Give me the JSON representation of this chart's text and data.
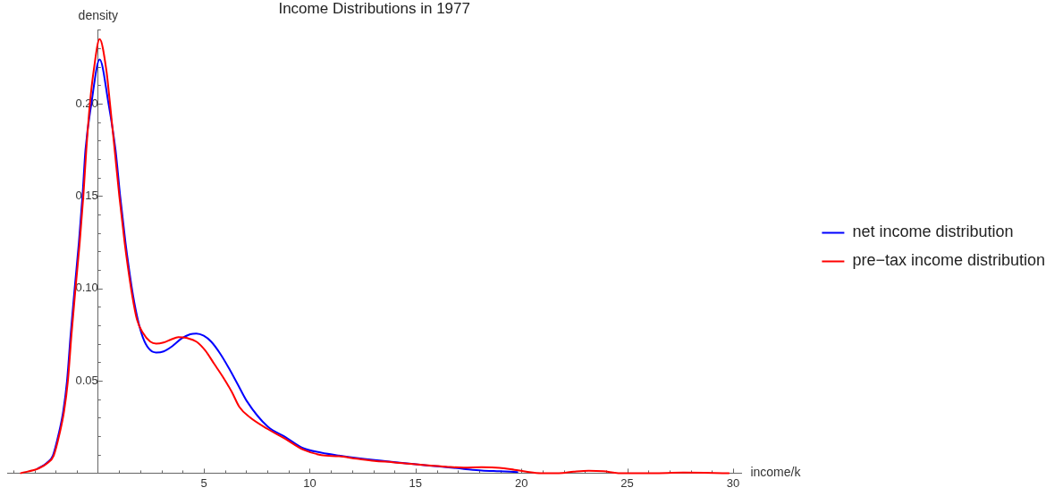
{
  "chart_data": {
    "type": "line",
    "title": "Income Distributions in 1977",
    "xlabel": "income/k",
    "ylabel": "density",
    "series": [
      {
        "name": "net income distribution",
        "color": "#0000ff",
        "x": [
          -2.84,
          -2.44,
          -2.14,
          -1.87,
          -1.65,
          -1.47,
          -1.3,
          -1.11,
          -0.91,
          -0.74,
          -0.6,
          -0.32,
          0.07,
          0.49,
          0.82,
          1.04,
          1.29,
          1.44,
          1.65,
          1.87,
          2.11,
          2.39,
          2.74,
          3.09,
          3.51,
          3.93,
          4.35,
          4.64,
          4.99,
          5.34,
          5.76,
          6.18,
          6.6,
          7.02,
          8.01,
          8.85,
          9.69,
          10.54,
          11.38,
          12.22,
          17.28,
          18.12,
          18.96,
          19.81
        ],
        "values": [
          0.0026,
          0.0054,
          0.0095,
          0.021,
          0.0335,
          0.05,
          0.075,
          0.1,
          0.125,
          0.15,
          0.175,
          0.2,
          0.224,
          0.2,
          0.175,
          0.15,
          0.125,
          0.112,
          0.0961,
          0.0833,
          0.0736,
          0.0675,
          0.0653,
          0.0659,
          0.0688,
          0.0728,
          0.0752,
          0.0756,
          0.0744,
          0.0712,
          0.0648,
          0.0568,
          0.048,
          0.0391,
          0.0252,
          0.0195,
          0.0135,
          0.0111,
          0.0095,
          0.0082,
          0.0023,
          0.0014,
          0.001,
          0.0006
        ]
      },
      {
        "name": "pre−tax income distribution",
        "color": "#ff0000",
        "x": [
          -3.65,
          -2.8,
          -2.4,
          -2.1,
          -1.83,
          -1.61,
          -1.43,
          -1.26,
          -1.07,
          -0.87,
          -0.7,
          -0.56,
          -0.39,
          -0.21,
          0.07,
          0.39,
          0.56,
          0.78,
          1.0,
          1.25,
          1.4,
          1.61,
          1.83,
          2.11,
          2.46,
          2.74,
          3.09,
          3.44,
          3.79,
          4.21,
          4.64,
          5.06,
          5.48,
          5.9,
          6.32,
          6.67,
          7.16,
          8.01,
          8.85,
          9.69,
          10.54,
          11.38,
          12.22,
          13.06,
          13.91,
          14.75,
          15.59,
          16.43,
          17.28,
          18.12,
          18.96,
          19.67,
          20.23,
          20.93,
          21.77,
          22.47,
          23.18,
          23.88,
          24.58,
          25.42,
          26.5,
          27.7,
          29.8
        ],
        "values": [
          0,
          0.0026,
          0.0054,
          0.0095,
          0.021,
          0.0335,
          0.05,
          0.075,
          0.1,
          0.125,
          0.15,
          0.175,
          0.2,
          0.218,
          0.235,
          0.218,
          0.2,
          0.175,
          0.15,
          0.125,
          0.112,
          0.0961,
          0.0833,
          0.076,
          0.0712,
          0.0701,
          0.0707,
          0.0723,
          0.0736,
          0.0731,
          0.0712,
          0.0664,
          0.0592,
          0.052,
          0.0439,
          0.0359,
          0.0303,
          0.0239,
          0.0185,
          0.0127,
          0.0098,
          0.0091,
          0.0078,
          0.0066,
          0.0059,
          0.005,
          0.0042,
          0.0035,
          0.003,
          0.0032,
          0.0029,
          0.0018,
          0.0008,
          0,
          0,
          0.0008,
          0.0013,
          0.001,
          0,
          0,
          0,
          0.0003,
          0
        ]
      }
    ],
    "xlim": [
      -4.3,
      30.4
    ],
    "ylim": [
      0,
      0.24
    ],
    "xticks": [
      {
        "value": -4,
        "label": null
      },
      {
        "value": -3,
        "label": null
      },
      {
        "value": -2,
        "label": null
      },
      {
        "value": -1,
        "label": null
      },
      {
        "value": 1,
        "label": null
      },
      {
        "value": 2,
        "label": null
      },
      {
        "value": 3,
        "label": null
      },
      {
        "value": 4,
        "label": null
      },
      5,
      {
        "value": 6,
        "label": null
      },
      {
        "value": 7,
        "label": null
      },
      {
        "value": 8,
        "label": null
      },
      {
        "value": 9,
        "label": null
      },
      10,
      {
        "value": 11,
        "label": null
      },
      {
        "value": 12,
        "label": null
      },
      {
        "value": 13,
        "label": null
      },
      {
        "value": 14,
        "label": null
      },
      15,
      {
        "value": 16,
        "label": null
      },
      {
        "value": 17,
        "label": null
      },
      {
        "value": 18,
        "label": null
      },
      {
        "value": 19,
        "label": null
      },
      20,
      {
        "value": 21,
        "label": null
      },
      {
        "value": 22,
        "label": null
      },
      {
        "value": 23,
        "label": null
      },
      {
        "value": 24,
        "label": null
      },
      25,
      {
        "value": 26,
        "label": null
      },
      {
        "value": 27,
        "label": null
      },
      {
        "value": 28,
        "label": null
      },
      {
        "value": 29,
        "label": null
      },
      30
    ],
    "yticks": [
      {
        "value": 0.01,
        "label": null
      },
      {
        "value": 0.02,
        "label": null
      },
      {
        "value": 0.03,
        "label": null
      },
      {
        "value": 0.04,
        "label": null
      },
      0.05,
      {
        "value": 0.06,
        "label": null
      },
      {
        "value": 0.07,
        "label": null
      },
      {
        "value": 0.08,
        "label": null
      },
      {
        "value": 0.09,
        "label": null
      },
      {
        "value": 0.1,
        "label": "0.10"
      },
      {
        "value": 0.11,
        "label": null
      },
      {
        "value": 0.12,
        "label": null
      },
      {
        "value": 0.13,
        "label": null
      },
      {
        "value": 0.14,
        "label": null
      },
      0.15,
      {
        "value": 0.16,
        "label": null
      },
      {
        "value": 0.17,
        "label": null
      },
      {
        "value": 0.18,
        "label": null
      },
      {
        "value": 0.19,
        "label": null
      },
      {
        "value": 0.2,
        "label": "0.20"
      },
      {
        "value": 0.21,
        "label": null
      },
      {
        "value": 0.22,
        "label": null
      },
      {
        "value": 0.23,
        "label": null
      },
      {
        "value": 0.24,
        "label": null
      }
    ],
    "legend": "right"
  }
}
